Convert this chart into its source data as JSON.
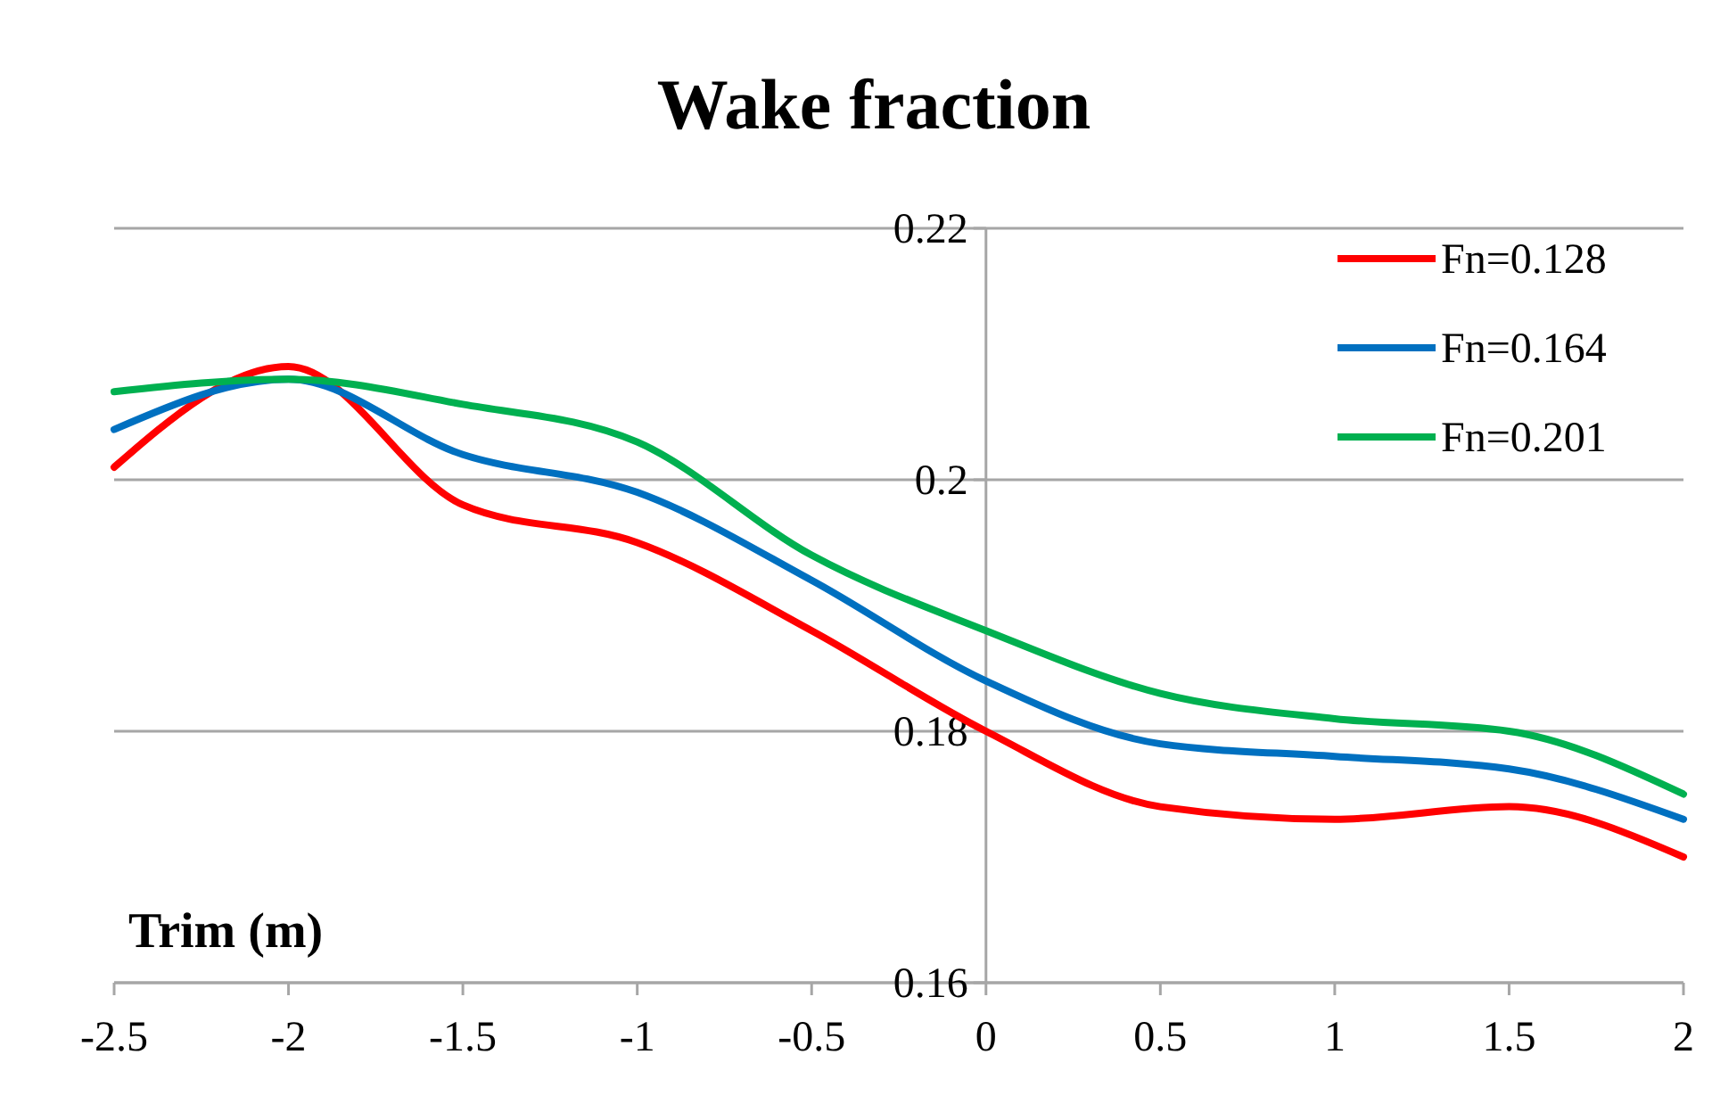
{
  "chart_data": {
    "type": "line",
    "title": "Wake fraction",
    "xlabel": "Trim (m)",
    "x": [
      -2.5,
      -2,
      -1.5,
      -1,
      -0.5,
      0,
      0.5,
      1,
      1.5,
      2
    ],
    "series": [
      {
        "name": "Fn=0.128",
        "color": "#ff0000",
        "values": [
          0.201,
          0.209,
          0.198,
          0.195,
          0.188,
          0.18,
          0.174,
          0.173,
          0.174,
          0.17
        ]
      },
      {
        "name": "Fn=0.164",
        "color": "#0070c0",
        "values": [
          0.204,
          0.208,
          0.202,
          0.199,
          0.192,
          0.184,
          0.179,
          0.178,
          0.177,
          0.173
        ]
      },
      {
        "name": "Fn=0.201",
        "color": "#00b050",
        "values": [
          0.207,
          0.208,
          0.206,
          0.203,
          0.194,
          0.188,
          0.183,
          0.181,
          0.18,
          0.175
        ]
      }
    ],
    "xlim": [
      -2.5,
      2
    ],
    "xticks": [
      -2.5,
      -2,
      -1.5,
      -1,
      -0.5,
      0,
      0.5,
      1,
      1.5,
      2
    ],
    "ylim": [
      0.16,
      0.22
    ],
    "yticks": [
      0.16,
      0.18,
      0.2,
      0.22
    ],
    "grid": "y",
    "legend": "top right",
    "marker": "none",
    "line_style": "solid"
  }
}
